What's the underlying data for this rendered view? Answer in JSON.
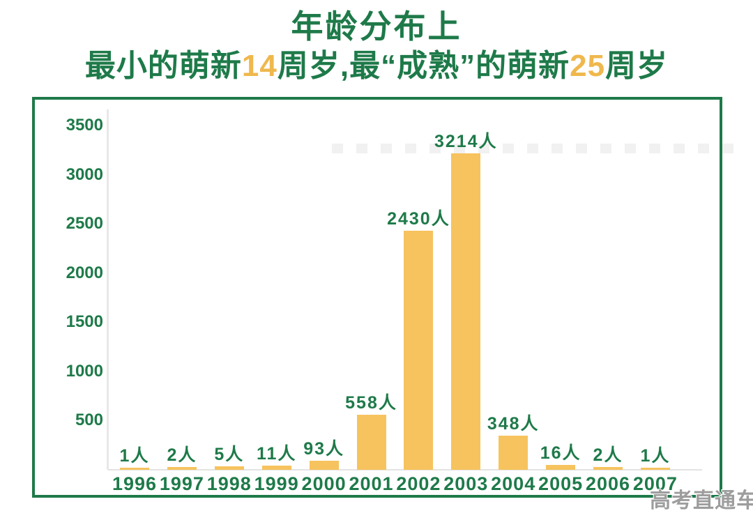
{
  "page": {
    "title": "年龄分布上",
    "subtitle_parts": [
      {
        "text": "最小的萌新",
        "accent": false
      },
      {
        "text": "14",
        "accent": true
      },
      {
        "text": "周岁,最“成熟”的萌新",
        "accent": false
      },
      {
        "text": "25",
        "accent": true
      },
      {
        "text": "周岁",
        "accent": false
      }
    ],
    "watermark": "高考直通车"
  },
  "colors": {
    "green": "#1e7a49",
    "orange": "#efb84d",
    "bar": "#f6c35e"
  },
  "chart_data": {
    "type": "bar",
    "categories": [
      "1996",
      "1997",
      "1998",
      "1999",
      "2000",
      "2001",
      "2002",
      "2003",
      "2004",
      "2005",
      "2006",
      "2007"
    ],
    "values": [
      1,
      2,
      5,
      11,
      93,
      558,
      2430,
      3214,
      348,
      16,
      2,
      1
    ],
    "value_labels": [
      "1人",
      "2人",
      "5人",
      "11人",
      "93人",
      "558人",
      "2430人",
      "3214人",
      "348人",
      "16人",
      "2人",
      "1人"
    ],
    "unit": "人",
    "title": "",
    "xlabel": "",
    "ylabel": "",
    "yticks": [
      500,
      1000,
      1500,
      2000,
      2500,
      3000,
      3500
    ],
    "ylim": [
      0,
      3500
    ],
    "grid": false,
    "legend": false,
    "bar_color": "#f6c35e",
    "label_color": "#1e7a49"
  }
}
